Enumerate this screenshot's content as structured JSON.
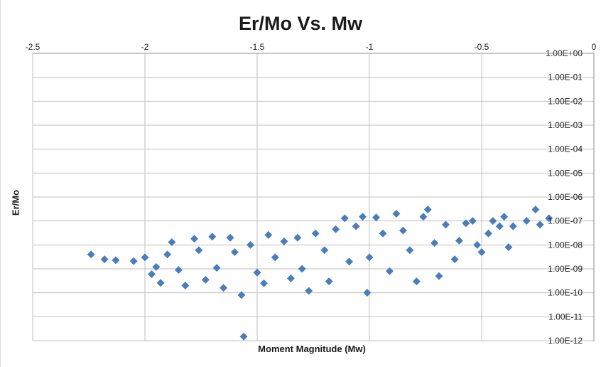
{
  "chart_data": {
    "type": "scatter",
    "title": "Er/Mo Vs. Mw",
    "xlabel": "Moment Magnitude (Mw)",
    "ylabel": "Er/Mo",
    "xlim": [
      -2.5,
      0
    ],
    "ylim": [
      1e-12,
      1
    ],
    "y_scale": "log",
    "grid": true,
    "legend": "none",
    "marker": "diamond",
    "marker_color": "#4a7ebb",
    "x_ticks": [
      "-2.5",
      "-2",
      "-1.5",
      "-1",
      "-0.5",
      "0"
    ],
    "y_ticks": [
      "1.00E+00",
      "1.00E-01",
      "1.00E-02",
      "1.00E-03",
      "1.00E-04",
      "1.00E-05",
      "1.00E-06",
      "1.00E-07",
      "1.00E-08",
      "1.00E-09",
      "1.00E-10",
      "1.00E-11",
      "1.00E-12"
    ],
    "points": [
      {
        "x": -2.24,
        "y": 4e-09
      },
      {
        "x": -2.18,
        "y": 2.5e-09
      },
      {
        "x": -2.13,
        "y": 2.3e-09
      },
      {
        "x": -2.05,
        "y": 2.1e-09
      },
      {
        "x": -2.0,
        "y": 3e-09
      },
      {
        "x": -1.95,
        "y": 1.2e-09
      },
      {
        "x": -1.97,
        "y": 6e-10
      },
      {
        "x": -1.93,
        "y": 2.6e-10
      },
      {
        "x": -1.9,
        "y": 4e-09
      },
      {
        "x": -1.88,
        "y": 1.3e-08
      },
      {
        "x": -1.85,
        "y": 9e-10
      },
      {
        "x": -1.82,
        "y": 2e-10
      },
      {
        "x": -1.78,
        "y": 1.8e-08
      },
      {
        "x": -1.76,
        "y": 6e-09
      },
      {
        "x": -1.73,
        "y": 3.5e-10
      },
      {
        "x": -1.7,
        "y": 2.2e-08
      },
      {
        "x": -1.68,
        "y": 1.1e-09
      },
      {
        "x": -1.65,
        "y": 1.6e-10
      },
      {
        "x": -1.62,
        "y": 2e-08
      },
      {
        "x": -1.6,
        "y": 5e-09
      },
      {
        "x": -1.57,
        "y": 8e-11
      },
      {
        "x": -1.56,
        "y": 1.5e-12
      },
      {
        "x": -1.53,
        "y": 1e-08
      },
      {
        "x": -1.5,
        "y": 7e-10
      },
      {
        "x": -1.47,
        "y": 2.5e-10
      },
      {
        "x": -1.45,
        "y": 2.6e-08
      },
      {
        "x": -1.42,
        "y": 3e-09
      },
      {
        "x": -1.38,
        "y": 1.4e-08
      },
      {
        "x": -1.35,
        "y": 4e-10
      },
      {
        "x": -1.32,
        "y": 2e-08
      },
      {
        "x": -1.3,
        "y": 1e-09
      },
      {
        "x": -1.27,
        "y": 1.2e-10
      },
      {
        "x": -1.24,
        "y": 3e-08
      },
      {
        "x": -1.2,
        "y": 6e-09
      },
      {
        "x": -1.18,
        "y": 3e-10
      },
      {
        "x": -1.15,
        "y": 4.5e-08
      },
      {
        "x": -1.11,
        "y": 1.3e-07
      },
      {
        "x": -1.09,
        "y": 2e-09
      },
      {
        "x": -1.06,
        "y": 6e-08
      },
      {
        "x": -1.03,
        "y": 1.5e-07
      },
      {
        "x": -1.01,
        "y": 1e-10
      },
      {
        "x": -1.0,
        "y": 3e-09
      },
      {
        "x": -0.97,
        "y": 1.4e-07
      },
      {
        "x": -0.94,
        "y": 3e-08
      },
      {
        "x": -0.91,
        "y": 8e-10
      },
      {
        "x": -0.88,
        "y": 2e-07
      },
      {
        "x": -0.85,
        "y": 4e-08
      },
      {
        "x": -0.82,
        "y": 6e-09
      },
      {
        "x": -0.79,
        "y": 3e-10
      },
      {
        "x": -0.76,
        "y": 1.5e-07
      },
      {
        "x": -0.74,
        "y": 3e-07
      },
      {
        "x": -0.71,
        "y": 1.2e-08
      },
      {
        "x": -0.69,
        "y": 5e-10
      },
      {
        "x": -0.66,
        "y": 7e-08
      },
      {
        "x": -0.62,
        "y": 2.5e-09
      },
      {
        "x": -0.6,
        "y": 1.5e-08
      },
      {
        "x": -0.57,
        "y": 8e-08
      },
      {
        "x": -0.54,
        "y": 1e-07
      },
      {
        "x": -0.52,
        "y": 1e-08
      },
      {
        "x": -0.5,
        "y": 5e-09
      },
      {
        "x": -0.47,
        "y": 3e-08
      },
      {
        "x": -0.45,
        "y": 1e-07
      },
      {
        "x": -0.42,
        "y": 6e-08
      },
      {
        "x": -0.4,
        "y": 1.5e-07
      },
      {
        "x": -0.38,
        "y": 8e-09
      },
      {
        "x": -0.36,
        "y": 6e-08
      },
      {
        "x": -0.3,
        "y": 1e-07
      },
      {
        "x": -0.26,
        "y": 3e-07
      },
      {
        "x": -0.24,
        "y": 7e-08
      },
      {
        "x": -0.2,
        "y": 1.3e-07
      }
    ]
  }
}
